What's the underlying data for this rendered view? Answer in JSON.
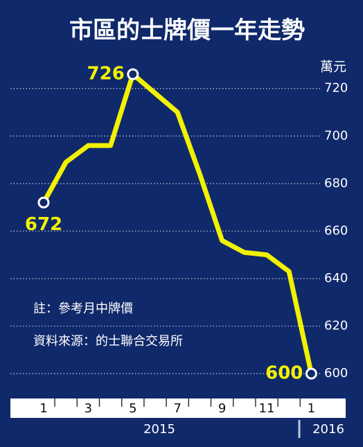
{
  "chart_data": {
    "type": "line",
    "title": "市區的士牌價一年走勢",
    "y_label": "萬元",
    "categories": [
      "1",
      null,
      "3",
      null,
      "5",
      null,
      "7",
      null,
      "9",
      null,
      "11",
      null,
      "1"
    ],
    "years": [
      "2015",
      "2016"
    ],
    "series": [
      {
        "name": "牌價",
        "color": "#f2f200",
        "values": [
          672,
          689,
          696,
          696,
          726,
          718,
          710,
          684,
          656,
          651,
          650,
          643,
          600
        ],
        "value_labels": [
          "672",
          null,
          null,
          null,
          "726",
          null,
          null,
          null,
          null,
          null,
          null,
          null,
          "600"
        ]
      }
    ],
    "ylim": [
      591,
      731
    ],
    "yticks": [
      600,
      620,
      640,
      660,
      680,
      700,
      720
    ],
    "grid": true,
    "notes": [
      "註：參考月中牌價",
      "資料來源：的士聯合交易所"
    ]
  }
}
